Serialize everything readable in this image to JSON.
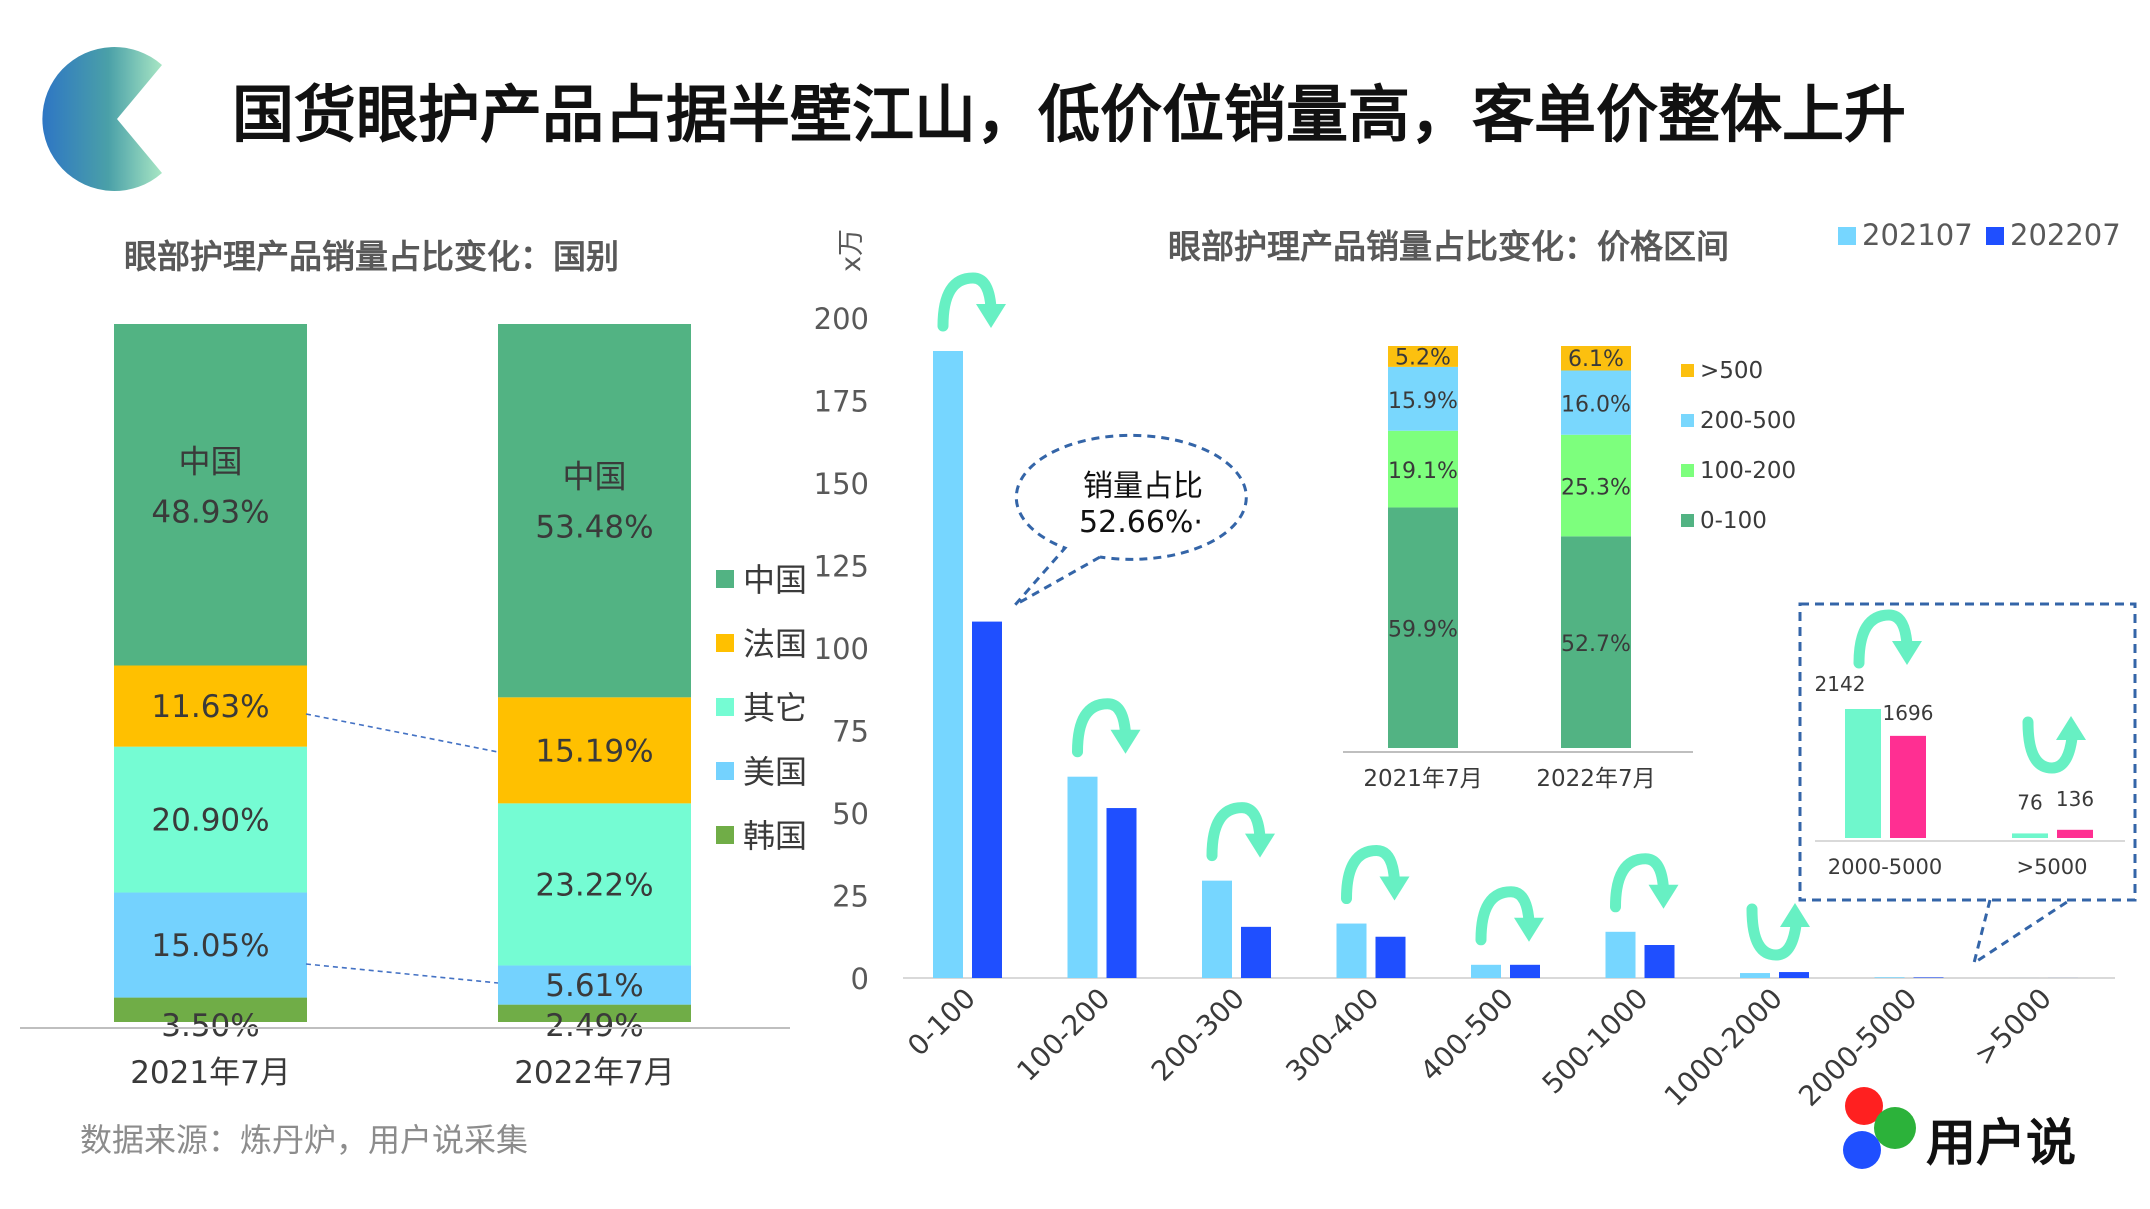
{
  "page": {
    "title": "国货眼护产品占据半壁江山，低价位销量高，客单价整体上升",
    "source": "数据来源：炼丹炉，用户说采集",
    "brand": "用户说"
  },
  "colors": {
    "china": "#52b383",
    "france": "#ffc000",
    "other": "#75fcd3",
    "usa": "#74d2fe",
    "korea": "#70ad47",
    "s202107": "#76d6ff",
    "s202207": "#1f4fff",
    "p0_100": "#52b383",
    "p100_200": "#7dff7d",
    "p200_500": "#79d7fd",
    "pgt500": "#fcc00f",
    "hi202207": "#ff2f92",
    "hi202107": "#6ff7cc",
    "arrow": "#67f0c3",
    "callout": "#3465a8"
  },
  "chart_data": [
    {
      "type": "bar",
      "stacked": true,
      "title": "眼部护理产品销量占比变化：国别",
      "categories": [
        "2021年7月",
        "2022年7月"
      ],
      "series": [
        {
          "name": "韩国",
          "values": [
            3.5,
            2.49
          ],
          "labels": [
            "3.50%",
            "2.49%"
          ]
        },
        {
          "name": "美国",
          "values": [
            15.05,
            5.61
          ],
          "labels": [
            "15.05%",
            "5.61%"
          ]
        },
        {
          "name": "其它",
          "values": [
            20.9,
            23.22
          ],
          "labels": [
            "20.90%",
            "23.22%"
          ]
        },
        {
          "name": "法国",
          "values": [
            11.63,
            15.19
          ],
          "labels": [
            "11.63%",
            "15.19%"
          ]
        },
        {
          "name": "中国",
          "values": [
            48.93,
            53.48
          ],
          "labels": [
            "48.93%",
            "53.48%"
          ],
          "category_label": "中国"
        }
      ],
      "legend": [
        "中国",
        "法国",
        "其它",
        "美国",
        "韩国"
      ],
      "legend_position": "right"
    },
    {
      "type": "bar",
      "title": "眼部护理产品销量占比变化：价格区间",
      "unit_label": "x万",
      "categories": [
        "0-100",
        "100-200",
        "200-300",
        "300-400",
        "400-500",
        "500-1000",
        "1000-2000",
        "2000-5000",
        ">5000"
      ],
      "series": [
        {
          "name": "202107",
          "values": [
            190,
            61,
            29.5,
            16.5,
            4,
            14,
            1.5,
            0.2142,
            0.0076
          ]
        },
        {
          "name": "202207",
          "values": [
            108,
            51.5,
            15.5,
            12.5,
            4,
            10,
            1.8,
            0.1696,
            0.0136
          ]
        }
      ],
      "ylim": [
        0,
        200
      ],
      "yticks": [
        0,
        25,
        50,
        75,
        100,
        125,
        150,
        175,
        200
      ],
      "trend": [
        "down",
        "down",
        "down",
        "down",
        "down",
        "down",
        "up",
        "down",
        "up"
      ],
      "legend_position": "top-right",
      "grid": false
    },
    {
      "type": "bar",
      "stacked": true,
      "inset": true,
      "categories": [
        "2021年7月",
        "2022年7月"
      ],
      "series": [
        {
          "name": "0-100",
          "values": [
            59.9,
            52.7
          ],
          "labels": [
            "59.9%",
            "52.7%"
          ]
        },
        {
          "name": "100-200",
          "values": [
            19.1,
            25.3
          ],
          "labels": [
            "19.1%",
            "25.3%"
          ]
        },
        {
          "name": "200-500",
          "values": [
            15.9,
            16.0
          ],
          "labels": [
            "15.9%",
            "16.0%"
          ]
        },
        {
          "name": ">500",
          "values": [
            5.2,
            6.1
          ],
          "labels": [
            "5.2%",
            "6.1%"
          ]
        }
      ],
      "legend": [
        ">500",
        "200-500",
        "100-200",
        "0-100"
      ],
      "legend_position": "right"
    },
    {
      "type": "bar",
      "inset": true,
      "categories": [
        "2000-5000",
        ">5000"
      ],
      "series": [
        {
          "name": "202107",
          "values": [
            2142,
            76
          ]
        },
        {
          "name": "202207",
          "values": [
            1696,
            136
          ]
        }
      ],
      "trend": [
        "down",
        "up"
      ]
    }
  ],
  "callout": {
    "line1": "销量占比",
    "line2": "52.66%·"
  }
}
